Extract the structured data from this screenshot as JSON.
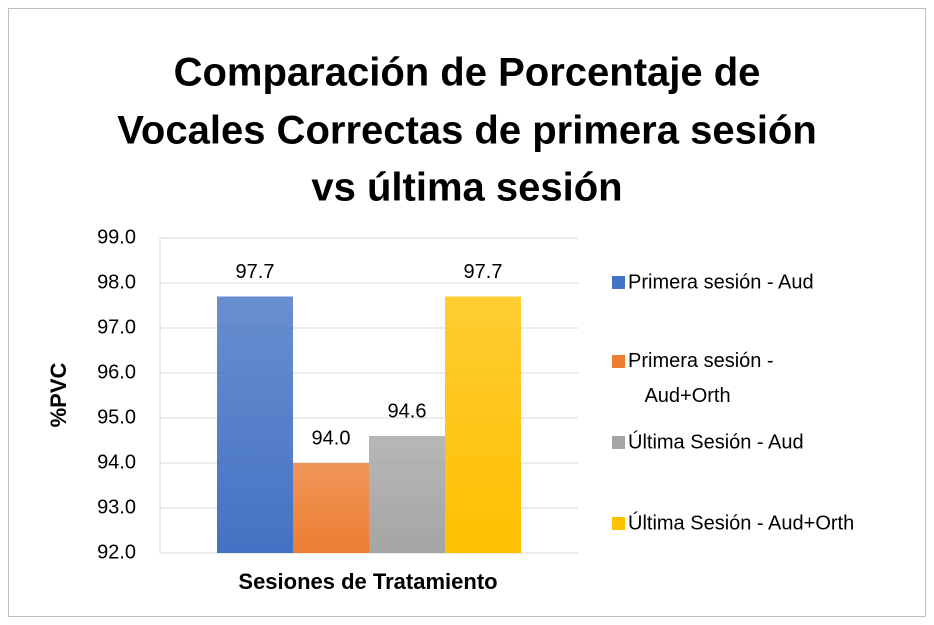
{
  "chart_data": {
    "type": "bar",
    "title": [
      "Comparación de Porcentaje de",
      "Vocales Correctas de primera sesión",
      "vs última sesión"
    ],
    "y_label": "%PVC",
    "x_label": "Sesiones de Tratamiento",
    "categories": [
      null
    ],
    "series": [
      {
        "name": "Primera sesión - Aud",
        "color": "#4472c4",
        "values": [
          97.7
        ],
        "value_labels": [
          "97.7"
        ]
      },
      {
        "name": "Primera sesión - Aud+Orth",
        "color": "#ed7d31",
        "values": [
          94.0
        ],
        "value_labels": [
          "94.0"
        ]
      },
      {
        "name": "Última Sesión - Aud",
        "color": "#a5a5a5",
        "values": [
          94.6
        ],
        "value_labels": [
          "94.6"
        ]
      },
      {
        "name": "Última Sesión - Aud+Orth",
        "color": "#ffc000",
        "values": [
          97.7
        ],
        "value_labels": [
          "97.7"
        ]
      }
    ],
    "ylim": [
      92,
      99
    ],
    "yticks": [
      {
        "value": 92,
        "label": "92.0"
      },
      {
        "value": 93,
        "label": "93.0"
      },
      {
        "value": 94,
        "label": "94.0"
      },
      {
        "value": 95,
        "label": "95.0"
      },
      {
        "value": 96,
        "label": "96.0"
      },
      {
        "value": 97,
        "label": "97.0"
      },
      {
        "value": 98,
        "label": "98.0"
      },
      {
        "value": 99,
        "label": "99.0"
      }
    ],
    "grid": true,
    "legend": "right"
  }
}
